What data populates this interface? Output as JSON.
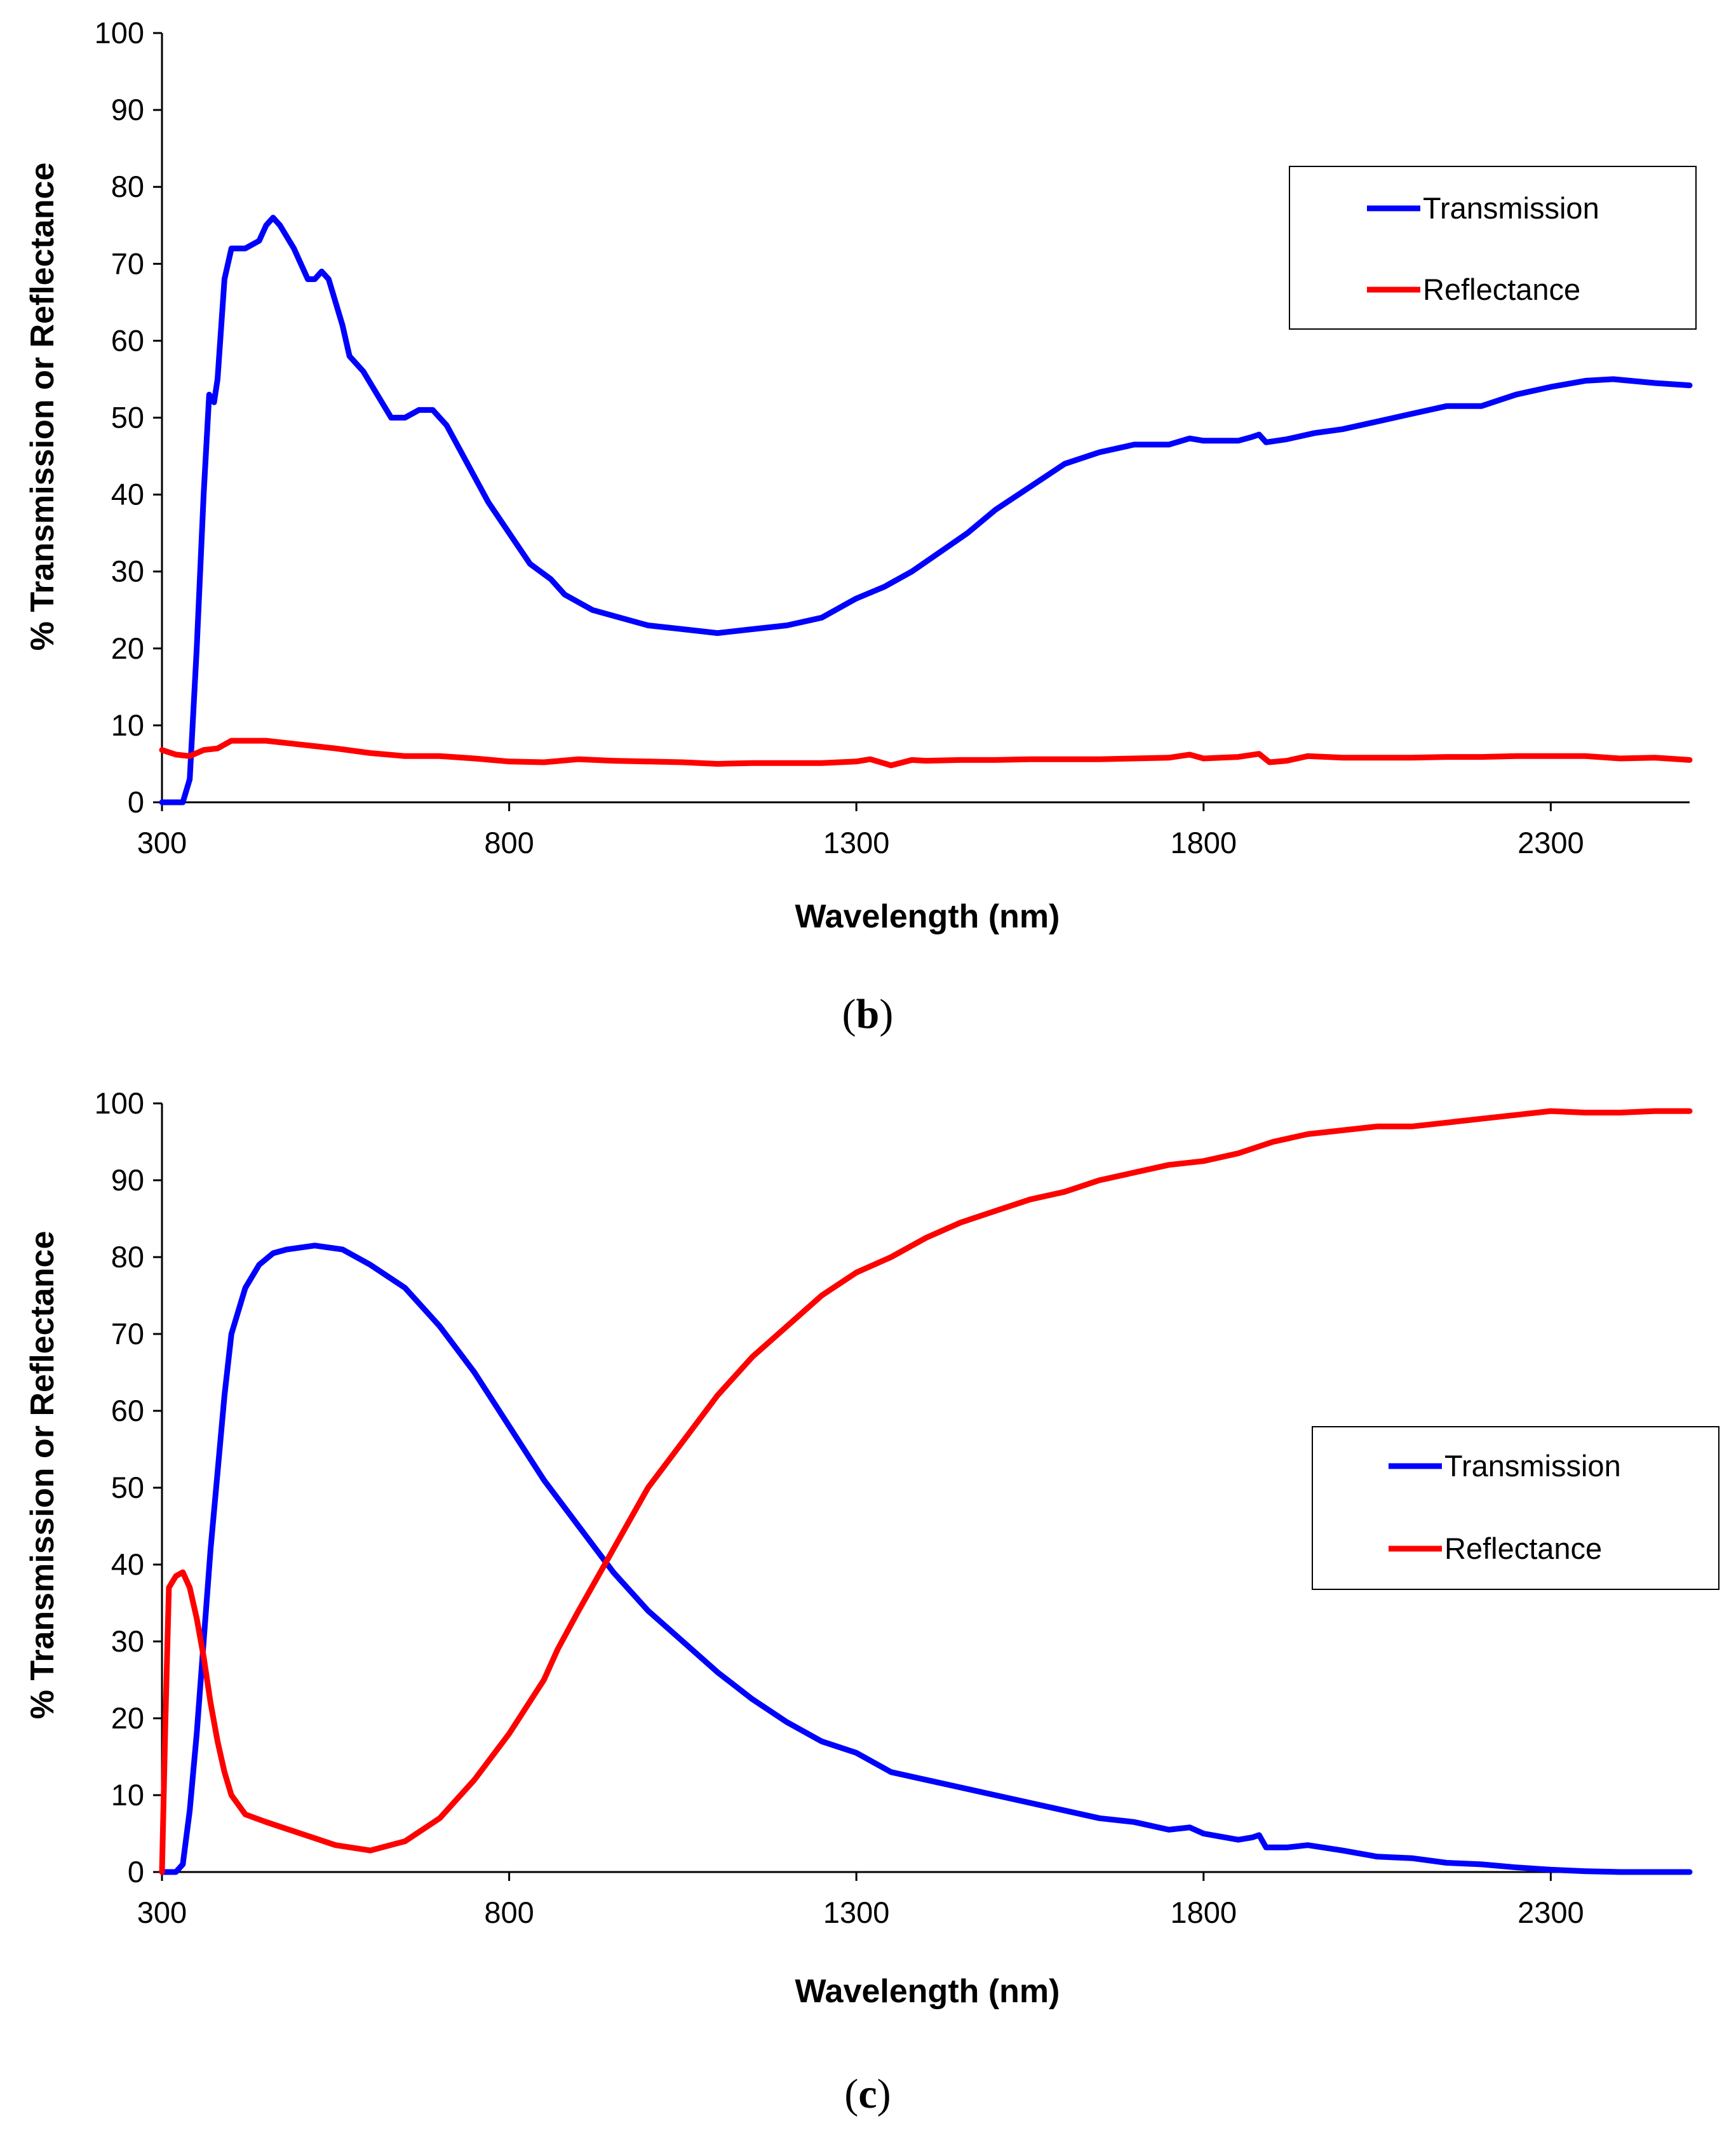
{
  "chart_data": [
    {
      "type": "line",
      "panel_label": "b",
      "title": "",
      "xlabel": "Wavelength (nm)",
      "ylabel": "% Transmission or Reflectance",
      "xlim": [
        300,
        2500
      ],
      "ylim": [
        0,
        100
      ],
      "x_ticks": [
        300,
        800,
        1300,
        1800,
        2300
      ],
      "y_ticks": [
        0,
        10,
        20,
        30,
        40,
        50,
        60,
        70,
        80,
        90,
        100
      ],
      "grid": false,
      "legend_position": "top-right",
      "series": [
        {
          "name": "Transmission",
          "color": "#0000ff",
          "points": [
            [
              300,
              0
            ],
            [
              330,
              0
            ],
            [
              340,
              3
            ],
            [
              350,
              20
            ],
            [
              360,
              40
            ],
            [
              368,
              53
            ],
            [
              375,
              52
            ],
            [
              380,
              55
            ],
            [
              390,
              68
            ],
            [
              400,
              72
            ],
            [
              420,
              72
            ],
            [
              440,
              73
            ],
            [
              450,
              75
            ],
            [
              460,
              76
            ],
            [
              470,
              75
            ],
            [
              490,
              72
            ],
            [
              510,
              68
            ],
            [
              520,
              68
            ],
            [
              530,
              69
            ],
            [
              540,
              68
            ],
            [
              560,
              62
            ],
            [
              570,
              58
            ],
            [
              590,
              56
            ],
            [
              610,
              53
            ],
            [
              630,
              50
            ],
            [
              650,
              50
            ],
            [
              670,
              51
            ],
            [
              690,
              51
            ],
            [
              710,
              49
            ],
            [
              740,
              44
            ],
            [
              770,
              39
            ],
            [
              800,
              35
            ],
            [
              830,
              31
            ],
            [
              860,
              29
            ],
            [
              880,
              27
            ],
            [
              920,
              25
            ],
            [
              960,
              24
            ],
            [
              1000,
              23
            ],
            [
              1050,
              22.5
            ],
            [
              1100,
              22
            ],
            [
              1150,
              22.5
            ],
            [
              1200,
              23
            ],
            [
              1250,
              24
            ],
            [
              1290,
              26
            ],
            [
              1300,
              26.5
            ],
            [
              1340,
              28
            ],
            [
              1380,
              30
            ],
            [
              1420,
              32.5
            ],
            [
              1460,
              35
            ],
            [
              1500,
              38
            ],
            [
              1550,
              41
            ],
            [
              1600,
              44
            ],
            [
              1650,
              45.5
            ],
            [
              1700,
              46.5
            ],
            [
              1750,
              46.5
            ],
            [
              1780,
              47.3
            ],
            [
              1800,
              47
            ],
            [
              1850,
              47
            ],
            [
              1870,
              47.5
            ],
            [
              1880,
              47.8
            ],
            [
              1890,
              46.8
            ],
            [
              1920,
              47.2
            ],
            [
              1960,
              48
            ],
            [
              2000,
              48.5
            ],
            [
              2050,
              49.5
            ],
            [
              2100,
              50.5
            ],
            [
              2150,
              51.5
            ],
            [
              2200,
              51.5
            ],
            [
              2250,
              53
            ],
            [
              2300,
              54
            ],
            [
              2350,
              54.8
            ],
            [
              2390,
              55
            ],
            [
              2450,
              54.5
            ],
            [
              2500,
              54.2
            ]
          ]
        },
        {
          "name": "Reflectance",
          "color": "#ff0000",
          "points": [
            [
              300,
              6.8
            ],
            [
              320,
              6.2
            ],
            [
              340,
              6
            ],
            [
              360,
              6.8
            ],
            [
              380,
              7
            ],
            [
              400,
              8
            ],
            [
              450,
              8
            ],
            [
              500,
              7.5
            ],
            [
              550,
              7
            ],
            [
              600,
              6.4
            ],
            [
              650,
              6
            ],
            [
              700,
              6
            ],
            [
              750,
              5.7
            ],
            [
              800,
              5.3
            ],
            [
              850,
              5.2
            ],
            [
              900,
              5.6
            ],
            [
              950,
              5.4
            ],
            [
              1000,
              5.3
            ],
            [
              1050,
              5.2
            ],
            [
              1100,
              5
            ],
            [
              1150,
              5.1
            ],
            [
              1200,
              5.1
            ],
            [
              1250,
              5.1
            ],
            [
              1300,
              5.3
            ],
            [
              1320,
              5.6
            ],
            [
              1350,
              4.8
            ],
            [
              1380,
              5.5
            ],
            [
              1400,
              5.4
            ],
            [
              1450,
              5.5
            ],
            [
              1500,
              5.5
            ],
            [
              1550,
              5.6
            ],
            [
              1600,
              5.6
            ],
            [
              1650,
              5.6
            ],
            [
              1700,
              5.7
            ],
            [
              1750,
              5.8
            ],
            [
              1780,
              6.2
            ],
            [
              1800,
              5.7
            ],
            [
              1850,
              5.9
            ],
            [
              1880,
              6.3
            ],
            [
              1895,
              5.2
            ],
            [
              1920,
              5.4
            ],
            [
              1950,
              6
            ],
            [
              2000,
              5.8
            ],
            [
              2050,
              5.8
            ],
            [
              2100,
              5.8
            ],
            [
              2150,
              5.9
            ],
            [
              2200,
              5.9
            ],
            [
              2250,
              6
            ],
            [
              2300,
              6
            ],
            [
              2350,
              6
            ],
            [
              2400,
              5.7
            ],
            [
              2450,
              5.8
            ],
            [
              2500,
              5.5
            ]
          ]
        }
      ]
    },
    {
      "type": "line",
      "panel_label": "c",
      "title": "",
      "xlabel": "Wavelength (nm)",
      "ylabel": "% Transmission or Reflectance",
      "xlim": [
        300,
        2500
      ],
      "ylim": [
        0,
        100
      ],
      "x_ticks": [
        300,
        800,
        1300,
        1800,
        2300
      ],
      "y_ticks": [
        0,
        10,
        20,
        30,
        40,
        50,
        60,
        70,
        80,
        90,
        100
      ],
      "grid": false,
      "legend_position": "right",
      "series": [
        {
          "name": "Transmission",
          "color": "#0000ff",
          "points": [
            [
              300,
              0
            ],
            [
              320,
              0
            ],
            [
              330,
              1
            ],
            [
              340,
              8
            ],
            [
              350,
              18
            ],
            [
              360,
              30
            ],
            [
              370,
              42
            ],
            [
              380,
              52
            ],
            [
              390,
              62
            ],
            [
              400,
              70
            ],
            [
              420,
              76
            ],
            [
              440,
              79
            ],
            [
              460,
              80.5
            ],
            [
              480,
              81
            ],
            [
              520,
              81.5
            ],
            [
              560,
              81
            ],
            [
              600,
              79
            ],
            [
              650,
              76
            ],
            [
              700,
              71
            ],
            [
              750,
              65
            ],
            [
              800,
              58
            ],
            [
              850,
              51
            ],
            [
              900,
              45
            ],
            [
              950,
              39
            ],
            [
              1000,
              34
            ],
            [
              1050,
              30
            ],
            [
              1100,
              26
            ],
            [
              1150,
              22.5
            ],
            [
              1200,
              19.5
            ],
            [
              1250,
              17
            ],
            [
              1300,
              15.5
            ],
            [
              1350,
              13
            ],
            [
              1400,
              12
            ],
            [
              1450,
              11
            ],
            [
              1500,
              10
            ],
            [
              1550,
              9
            ],
            [
              1600,
              8
            ],
            [
              1650,
              7
            ],
            [
              1700,
              6.5
            ],
            [
              1750,
              5.5
            ],
            [
              1780,
              5.8
            ],
            [
              1800,
              5
            ],
            [
              1850,
              4.2
            ],
            [
              1870,
              4.5
            ],
            [
              1880,
              4.8
            ],
            [
              1890,
              3.2
            ],
            [
              1920,
              3.2
            ],
            [
              1950,
              3.5
            ],
            [
              2000,
              2.8
            ],
            [
              2050,
              2
            ],
            [
              2100,
              1.8
            ],
            [
              2150,
              1.2
            ],
            [
              2200,
              1
            ],
            [
              2250,
              0.6
            ],
            [
              2300,
              0.3
            ],
            [
              2350,
              0.1
            ],
            [
              2400,
              0
            ],
            [
              2500,
              0
            ]
          ]
        },
        {
          "name": "Reflectance",
          "color": "#ff0000",
          "points": [
            [
              300,
              0
            ],
            [
              305,
              20
            ],
            [
              310,
              37
            ],
            [
              320,
              38.5
            ],
            [
              330,
              39
            ],
            [
              340,
              37
            ],
            [
              350,
              33
            ],
            [
              360,
              28
            ],
            [
              370,
              22
            ],
            [
              380,
              17
            ],
            [
              390,
              13
            ],
            [
              400,
              10
            ],
            [
              420,
              7.5
            ],
            [
              450,
              6.5
            ],
            [
              500,
              5
            ],
            [
              550,
              3.5
            ],
            [
              600,
              2.8
            ],
            [
              650,
              4
            ],
            [
              700,
              7
            ],
            [
              750,
              12
            ],
            [
              800,
              18
            ],
            [
              850,
              25
            ],
            [
              870,
              29
            ],
            [
              900,
              34
            ],
            [
              950,
              42
            ],
            [
              1000,
              50
            ],
            [
              1050,
              56
            ],
            [
              1100,
              62
            ],
            [
              1150,
              67
            ],
            [
              1200,
              71
            ],
            [
              1250,
              75
            ],
            [
              1300,
              78
            ],
            [
              1350,
              80
            ],
            [
              1400,
              82.5
            ],
            [
              1450,
              84.5
            ],
            [
              1500,
              86
            ],
            [
              1550,
              87.5
            ],
            [
              1600,
              88.5
            ],
            [
              1650,
              90
            ],
            [
              1700,
              91
            ],
            [
              1750,
              92
            ],
            [
              1800,
              92.5
            ],
            [
              1850,
              93.5
            ],
            [
              1900,
              95
            ],
            [
              1950,
              96
            ],
            [
              2000,
              96.5
            ],
            [
              2050,
              97
            ],
            [
              2100,
              97
            ],
            [
              2150,
              97.5
            ],
            [
              2200,
              98
            ],
            [
              2250,
              98.5
            ],
            [
              2300,
              99
            ],
            [
              2350,
              98.8
            ],
            [
              2400,
              98.8
            ],
            [
              2450,
              99
            ],
            [
              2500,
              99
            ]
          ]
        }
      ]
    }
  ]
}
